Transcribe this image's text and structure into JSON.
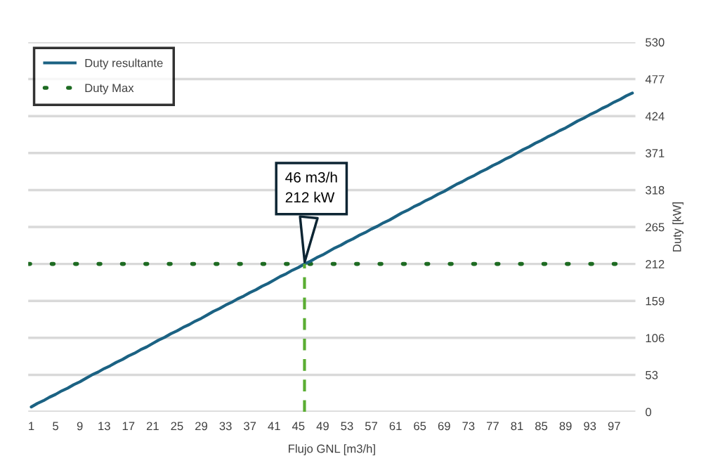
{
  "chart_data": {
    "type": "line",
    "xlabel": "Flujo GNL [m3/h]",
    "ylabel": "Duty [kW]",
    "x": [
      1,
      2,
      3,
      4,
      5,
      6,
      7,
      8,
      9,
      10,
      11,
      12,
      13,
      14,
      15,
      16,
      17,
      18,
      19,
      20,
      21,
      22,
      23,
      24,
      25,
      26,
      27,
      28,
      29,
      30,
      31,
      32,
      33,
      34,
      35,
      36,
      37,
      38,
      39,
      40,
      41,
      42,
      43,
      44,
      45,
      46,
      47,
      48,
      49,
      50,
      51,
      52,
      53,
      54,
      55,
      56,
      57,
      58,
      59,
      60,
      61,
      62,
      63,
      64,
      65,
      66,
      67,
      68,
      69,
      70,
      71,
      72,
      73,
      74,
      75,
      76,
      77,
      78,
      79,
      80,
      81,
      82,
      83,
      84,
      85,
      86,
      87,
      88,
      89,
      90,
      91,
      92,
      93,
      94,
      95,
      96,
      97,
      98,
      99,
      100
    ],
    "series": [
      {
        "name": "Duty resultante",
        "color": "#1b6283",
        "line_style": "solid",
        "values": [
          7,
          12,
          16,
          21,
          25,
          30,
          34,
          39,
          43,
          48,
          53,
          57,
          62,
          66,
          71,
          75,
          80,
          84,
          89,
          93,
          98,
          103,
          107,
          112,
          116,
          121,
          125,
          130,
          134,
          139,
          144,
          148,
          153,
          157,
          162,
          166,
          171,
          175,
          180,
          184,
          189,
          194,
          198,
          203,
          207,
          212,
          216,
          221,
          225,
          230,
          235,
          239,
          244,
          248,
          253,
          257,
          262,
          266,
          271,
          275,
          280,
          285,
          289,
          294,
          298,
          303,
          307,
          312,
          316,
          321,
          326,
          330,
          335,
          339,
          344,
          348,
          353,
          357,
          362,
          366,
          371,
          376,
          380,
          385,
          389,
          394,
          398,
          403,
          407,
          412,
          417,
          421,
          426,
          430,
          435,
          439,
          444,
          448,
          453,
          457
        ]
      },
      {
        "color": "#5aad32",
        "line_style": "dashed",
        "x": [
          46,
          46
        ],
        "values": [
          0,
          212
        ]
      }
    ],
    "ref_lines": [
      {
        "axis": "y",
        "value": 212,
        "label": "Duty Max",
        "color": "#1e6b22",
        "line_style": "dotted"
      }
    ],
    "annotations": [
      {
        "text": "46 m3/h\n212 kW",
        "x": 46,
        "y": 212
      }
    ],
    "xlim": [
      0.5,
      100.5
    ],
    "xticks": [
      1,
      5,
      9,
      13,
      17,
      21,
      25,
      29,
      33,
      37,
      41,
      45,
      49,
      53,
      57,
      61,
      65,
      69,
      73,
      77,
      81,
      85,
      89,
      93,
      97
    ],
    "ylim": [
      0,
      530
    ],
    "yticks": [
      0,
      53,
      106,
      159,
      212,
      265,
      318,
      371,
      424,
      477,
      530
    ],
    "grid": "y",
    "legend": "top left",
    "marker": "none"
  }
}
